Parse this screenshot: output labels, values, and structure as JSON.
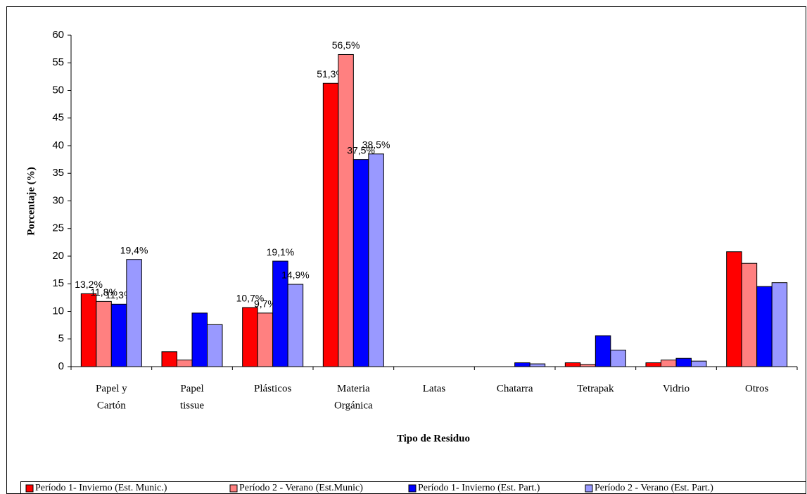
{
  "chart_data": {
    "type": "bar",
    "ylabel": "Porcentaje (%)",
    "xlabel": "Tipo de Residuo",
    "categories": [
      [
        "Papel y",
        "Cartón"
      ],
      [
        "Papel",
        "tissue"
      ],
      [
        "Plásticos"
      ],
      [
        "Materia",
        "Orgánica"
      ],
      [
        "Latas"
      ],
      [
        "Chatarra"
      ],
      [
        "Tetrapak"
      ],
      [
        "Vidrio"
      ],
      [
        "Otros"
      ]
    ],
    "series": [
      {
        "name": "Período 1- Invierno (Est. Munic.)",
        "color": "#ff0000",
        "values": [
          13.2,
          2.7,
          10.7,
          51.3,
          0,
          0,
          0.7,
          0.7,
          20.8
        ],
        "value_labels": [
          "13,2%",
          null,
          "10,7%",
          "51,3%",
          null,
          null,
          null,
          null,
          null
        ]
      },
      {
        "name": "Período 2 - Verano (Est.Munic)",
        "color": "#ff8080",
        "values": [
          11.8,
          1.2,
          9.7,
          56.5,
          0,
          0,
          0.4,
          1.2,
          18.7
        ],
        "value_labels": [
          "11,8%",
          null,
          "9,7%",
          "56,5%",
          null,
          null,
          null,
          null,
          null
        ]
      },
      {
        "name": "Período 1- Invierno (Est. Part.)",
        "color": "#0000ff",
        "values": [
          11.3,
          9.7,
          19.1,
          37.5,
          0,
          0.7,
          5.6,
          1.5,
          14.5
        ],
        "value_labels": [
          "11,3%",
          null,
          "19,1%",
          "37,5%",
          null,
          null,
          null,
          null,
          null
        ]
      },
      {
        "name": "Período 2 - Verano (Est. Part.)",
        "color": "#9999ff",
        "values": [
          19.4,
          7.6,
          14.9,
          38.5,
          0,
          0.5,
          3.0,
          1.0,
          15.2
        ],
        "value_labels": [
          "19,4%",
          null,
          "14,9%",
          "38,5%",
          null,
          null,
          null,
          null,
          null
        ]
      }
    ],
    "ylim": [
      0,
      60
    ],
    "yticks": [
      0,
      5,
      10,
      15,
      20,
      25,
      30,
      35,
      40,
      45,
      50,
      55,
      60
    ]
  }
}
